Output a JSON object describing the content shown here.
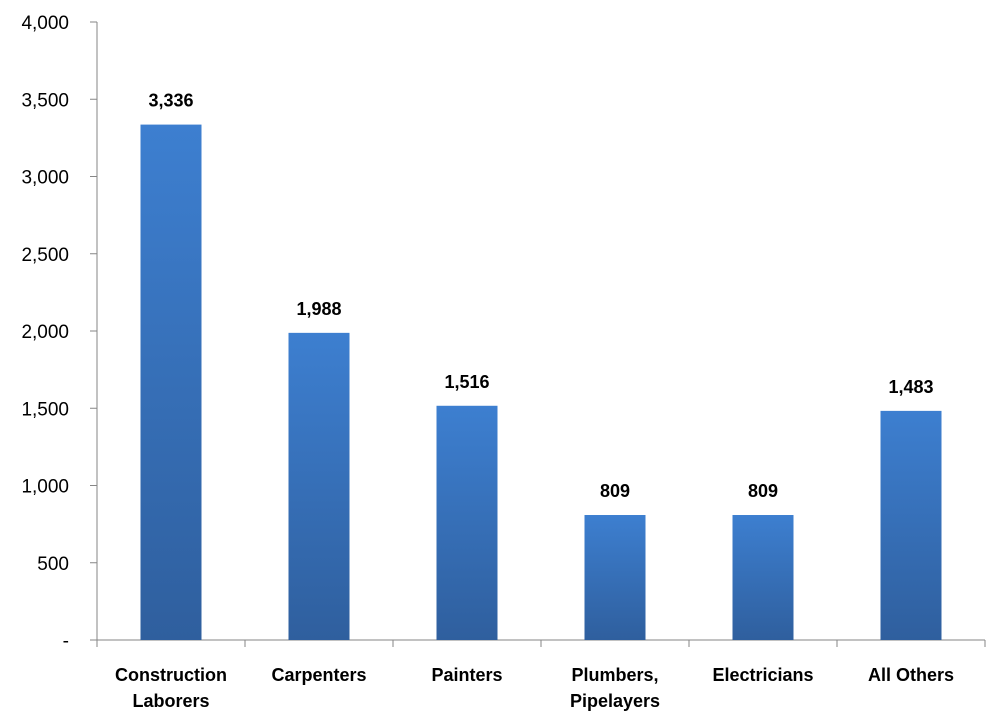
{
  "chart_data": {
    "type": "bar",
    "title": "",
    "xlabel": "",
    "ylabel": "",
    "categories": [
      [
        "Construction",
        "Laborers"
      ],
      [
        "Carpenters"
      ],
      [
        "Painters"
      ],
      [
        "Plumbers,",
        "Pipelayers"
      ],
      [
        "Electricians"
      ],
      [
        "All Others"
      ]
    ],
    "values": [
      3336,
      1988,
      1516,
      809,
      809,
      1483
    ],
    "value_labels": [
      "3,336",
      "1,988",
      "1,516",
      "809",
      "809",
      "1,483"
    ],
    "ylim": [
      0,
      4000
    ],
    "yticks": [
      0,
      500,
      1000,
      1500,
      2000,
      2500,
      3000,
      3500,
      4000
    ],
    "ytick_labels": [
      "-",
      "500",
      "1,000",
      "1,500",
      "2,000",
      "2,500",
      "3,000",
      "3,500",
      "4,000"
    ],
    "grid": false,
    "legend": "none",
    "colors": {
      "bar_top": "#3d7fd0",
      "bar_bottom": "#2f5f9e",
      "axis": "#868686"
    }
  }
}
